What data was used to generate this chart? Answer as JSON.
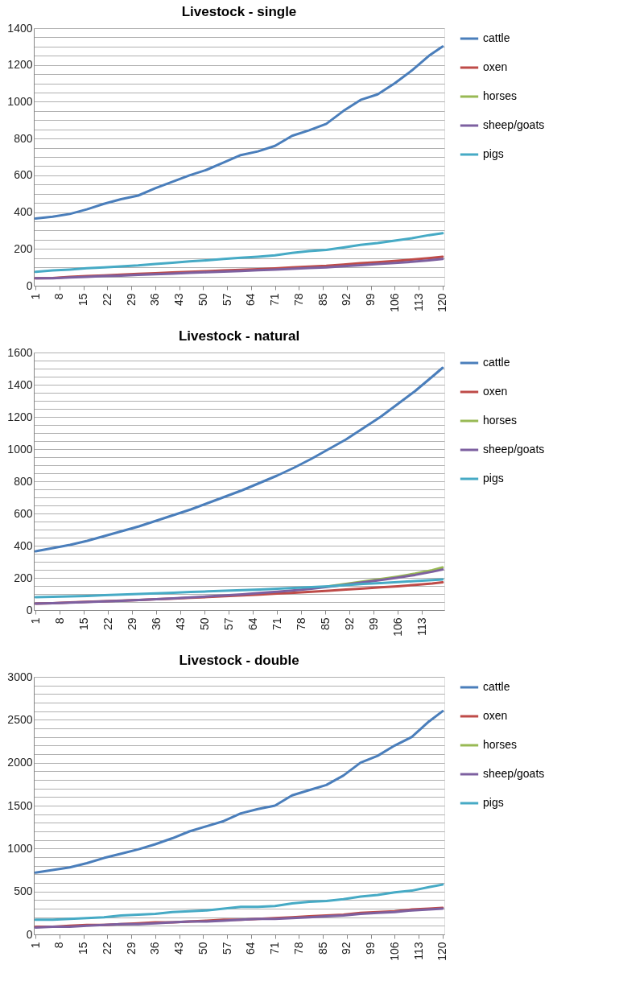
{
  "chart_data": [
    {
      "type": "line",
      "title": "Livestock - single",
      "x": [
        1,
        6,
        11,
        16,
        21,
        26,
        31,
        36,
        41,
        46,
        51,
        56,
        61,
        66,
        71,
        76,
        81,
        86,
        91,
        96,
        101,
        106,
        111,
        116,
        120
      ],
      "xlim": [
        0.5,
        120.5
      ],
      "xticks": [
        1,
        8,
        15,
        22,
        29,
        36,
        43,
        50,
        57,
        64,
        71,
        78,
        85,
        92,
        99,
        106,
        113,
        120
      ],
      "ylim": [
        0,
        1400
      ],
      "yticks": [
        0,
        {
          "value": 50,
          "label": null
        },
        {
          "value": 100,
          "label": null
        },
        {
          "value": 150,
          "label": null
        },
        200,
        {
          "value": 250,
          "label": null
        },
        {
          "value": 300,
          "label": null
        },
        {
          "value": 350,
          "label": null
        },
        400,
        {
          "value": 450,
          "label": null
        },
        {
          "value": 500,
          "label": null
        },
        {
          "value": 550,
          "label": null
        },
        600,
        {
          "value": 650,
          "label": null
        },
        {
          "value": 700,
          "label": null
        },
        {
          "value": 750,
          "label": null
        },
        800,
        {
          "value": 850,
          "label": null
        },
        {
          "value": 900,
          "label": null
        },
        {
          "value": 950,
          "label": null
        },
        1000,
        {
          "value": 1050,
          "label": null
        },
        {
          "value": 1100,
          "label": null
        },
        {
          "value": 1150,
          "label": null
        },
        1200,
        {
          "value": 1250,
          "label": null
        },
        {
          "value": 1300,
          "label": null
        },
        {
          "value": 1350,
          "label": null
        },
        1400
      ],
      "grid": "y",
      "legend": "right",
      "marker": "none",
      "line_style": "solid",
      "series": [
        {
          "name": "cattle",
          "color": "#4a7ebb",
          "values": [
            365,
            375,
            390,
            415,
            445,
            470,
            490,
            530,
            565,
            600,
            630,
            670,
            710,
            730,
            760,
            815,
            845,
            880,
            950,
            1010,
            1040,
            1100,
            1170,
            1250,
            1300
          ]
        },
        {
          "name": "oxen",
          "color": "#be4b48",
          "values": [
            40,
            42,
            48,
            52,
            56,
            60,
            64,
            68,
            72,
            76,
            79,
            83,
            86,
            90,
            94,
            100,
            104,
            108,
            115,
            122,
            128,
            135,
            142,
            150,
            157
          ]
        },
        {
          "name": "horses",
          "color": "#98b954",
          "values": [
            null,
            null,
            null,
            null,
            null,
            null,
            null,
            null,
            null,
            null,
            null,
            null,
            null,
            null,
            null,
            null,
            null,
            null,
            null,
            null,
            null,
            null,
            null,
            null,
            null
          ]
        },
        {
          "name": "sheep/goats",
          "color": "#7d60a0",
          "values": [
            40,
            41,
            45,
            48,
            52,
            55,
            59,
            62,
            66,
            70,
            73,
            77,
            80,
            84,
            88,
            92,
            96,
            100,
            106,
            112,
            118,
            124,
            130,
            138,
            145
          ]
        },
        {
          "name": "pigs",
          "color": "#46aac5",
          "values": [
            75,
            83,
            88,
            95,
            100,
            105,
            110,
            118,
            125,
            132,
            138,
            145,
            152,
            158,
            165,
            178,
            188,
            195,
            208,
            222,
            232,
            245,
            258,
            275,
            285
          ]
        }
      ]
    },
    {
      "type": "line",
      "title": "Livestock - natural",
      "x": [
        1,
        6,
        11,
        16,
        21,
        26,
        31,
        36,
        41,
        46,
        51,
        56,
        61,
        66,
        71,
        76,
        81,
        86,
        91,
        96,
        101,
        106,
        111,
        116,
        119
      ],
      "xlim": [
        0.5,
        119.5
      ],
      "xticks": [
        1,
        8,
        15,
        22,
        29,
        36,
        43,
        50,
        57,
        64,
        71,
        78,
        85,
        92,
        99,
        106,
        113
      ],
      "ylim": [
        0,
        1600
      ],
      "yticks": [
        0,
        {
          "value": 50,
          "label": null
        },
        {
          "value": 100,
          "label": null
        },
        {
          "value": 150,
          "label": null
        },
        200,
        {
          "value": 250,
          "label": null
        },
        {
          "value": 300,
          "label": null
        },
        {
          "value": 350,
          "label": null
        },
        400,
        {
          "value": 450,
          "label": null
        },
        {
          "value": 500,
          "label": null
        },
        {
          "value": 550,
          "label": null
        },
        600,
        {
          "value": 650,
          "label": null
        },
        {
          "value": 700,
          "label": null
        },
        {
          "value": 750,
          "label": null
        },
        800,
        {
          "value": 850,
          "label": null
        },
        {
          "value": 900,
          "label": null
        },
        {
          "value": 950,
          "label": null
        },
        1000,
        {
          "value": 1050,
          "label": null
        },
        {
          "value": 1100,
          "label": null
        },
        {
          "value": 1150,
          "label": null
        },
        1200,
        {
          "value": 1250,
          "label": null
        },
        {
          "value": 1300,
          "label": null
        },
        {
          "value": 1350,
          "label": null
        },
        1400,
        {
          "value": 1450,
          "label": null
        },
        {
          "value": 1500,
          "label": null
        },
        {
          "value": 1550,
          "label": null
        },
        1600
      ],
      "grid": "y",
      "legend": "right",
      "marker": "none",
      "line_style": "solid",
      "series": [
        {
          "name": "cattle",
          "color": "#4a7ebb",
          "values": [
            365,
            385,
            405,
            430,
            460,
            490,
            520,
            555,
            590,
            625,
            665,
            705,
            745,
            790,
            835,
            885,
            940,
            1000,
            1060,
            1130,
            1200,
            1280,
            1360,
            1450,
            1505
          ]
        },
        {
          "name": "oxen",
          "color": "#be4b48",
          "values": [
            40,
            43,
            47,
            51,
            55,
            59,
            63,
            67,
            71,
            76,
            81,
            86,
            91,
            96,
            102,
            108,
            114,
            120,
            127,
            134,
            141,
            148,
            156,
            165,
            172
          ]
        },
        {
          "name": "horses",
          "color": "#98b954",
          "values": [
            null,
            null,
            null,
            null,
            null,
            null,
            null,
            null,
            null,
            null,
            null,
            null,
            null,
            null,
            null,
            null,
            null,
            148,
            162,
            177,
            192,
            208,
            226,
            248,
            265
          ]
        },
        {
          "name": "sheep/goats",
          "color": "#7d60a0",
          "values": [
            40,
            42,
            46,
            50,
            54,
            58,
            63,
            68,
            73,
            79,
            85,
            91,
            98,
            106,
            114,
            123,
            133,
            145,
            158,
            172,
            186,
            201,
            218,
            238,
            252
          ]
        },
        {
          "name": "pigs",
          "color": "#46aac5",
          "values": [
            80,
            82,
            85,
            88,
            92,
            96,
            100,
            104,
            108,
            112,
            116,
            120,
            124,
            128,
            132,
            137,
            142,
            148,
            155,
            162,
            168,
            174,
            180,
            186,
            190
          ]
        }
      ]
    },
    {
      "type": "line",
      "title": "Livestock - double",
      "x": [
        1,
        6,
        11,
        16,
        21,
        26,
        31,
        36,
        41,
        46,
        51,
        56,
        61,
        66,
        71,
        76,
        81,
        86,
        91,
        96,
        101,
        106,
        111,
        116,
        120
      ],
      "xlim": [
        0.5,
        120.5
      ],
      "xticks": [
        1,
        8,
        15,
        22,
        29,
        36,
        43,
        50,
        57,
        64,
        71,
        78,
        85,
        92,
        99,
        106,
        113,
        120
      ],
      "ylim": [
        0,
        3000
      ],
      "yticks": [
        0,
        {
          "value": 100,
          "label": null
        },
        {
          "value": 200,
          "label": null
        },
        {
          "value": 300,
          "label": null
        },
        {
          "value": 400,
          "label": null
        },
        500,
        {
          "value": 600,
          "label": null
        },
        {
          "value": 700,
          "label": null
        },
        {
          "value": 800,
          "label": null
        },
        {
          "value": 900,
          "label": null
        },
        1000,
        {
          "value": 1100,
          "label": null
        },
        {
          "value": 1200,
          "label": null
        },
        {
          "value": 1300,
          "label": null
        },
        {
          "value": 1400,
          "label": null
        },
        1500,
        {
          "value": 1600,
          "label": null
        },
        {
          "value": 1700,
          "label": null
        },
        {
          "value": 1800,
          "label": null
        },
        {
          "value": 1900,
          "label": null
        },
        2000,
        {
          "value": 2100,
          "label": null
        },
        {
          "value": 2200,
          "label": null
        },
        {
          "value": 2300,
          "label": null
        },
        {
          "value": 2400,
          "label": null
        },
        2500,
        {
          "value": 2600,
          "label": null
        },
        {
          "value": 2700,
          "label": null
        },
        {
          "value": 2800,
          "label": null
        },
        {
          "value": 2900,
          "label": null
        },
        3000
      ],
      "grid": "y",
      "legend": "right",
      "marker": "none",
      "line_style": "solid",
      "series": [
        {
          "name": "cattle",
          "color": "#4a7ebb",
          "values": [
            720,
            750,
            780,
            830,
            890,
            940,
            990,
            1050,
            1120,
            1200,
            1260,
            1320,
            1410,
            1460,
            1500,
            1620,
            1680,
            1740,
            1850,
            2000,
            2080,
            2200,
            2300,
            2480,
            2600
          ]
        },
        {
          "name": "oxen",
          "color": "#be4b48",
          "values": [
            90,
            90,
            100,
            110,
            110,
            120,
            130,
            140,
            140,
            150,
            160,
            170,
            170,
            180,
            190,
            200,
            210,
            220,
            230,
            250,
            260,
            270,
            290,
            300,
            310
          ]
        },
        {
          "name": "horses",
          "color": "#98b954",
          "values": [
            null,
            null,
            null,
            null,
            null,
            null,
            null,
            null,
            null,
            null,
            null,
            null,
            null,
            null,
            null,
            null,
            null,
            null,
            null,
            null,
            null,
            null,
            null,
            null,
            null
          ]
        },
        {
          "name": "sheep/goats",
          "color": "#7d60a0",
          "values": [
            80,
            90,
            90,
            100,
            110,
            120,
            120,
            130,
            140,
            150,
            150,
            160,
            170,
            180,
            180,
            190,
            200,
            210,
            220,
            240,
            250,
            260,
            280,
            290,
            300
          ]
        },
        {
          "name": "pigs",
          "color": "#46aac5",
          "values": [
            170,
            170,
            180,
            190,
            200,
            220,
            230,
            240,
            260,
            270,
            280,
            300,
            320,
            320,
            330,
            360,
            380,
            390,
            410,
            440,
            460,
            490,
            510,
            550,
            580
          ]
        }
      ]
    }
  ]
}
